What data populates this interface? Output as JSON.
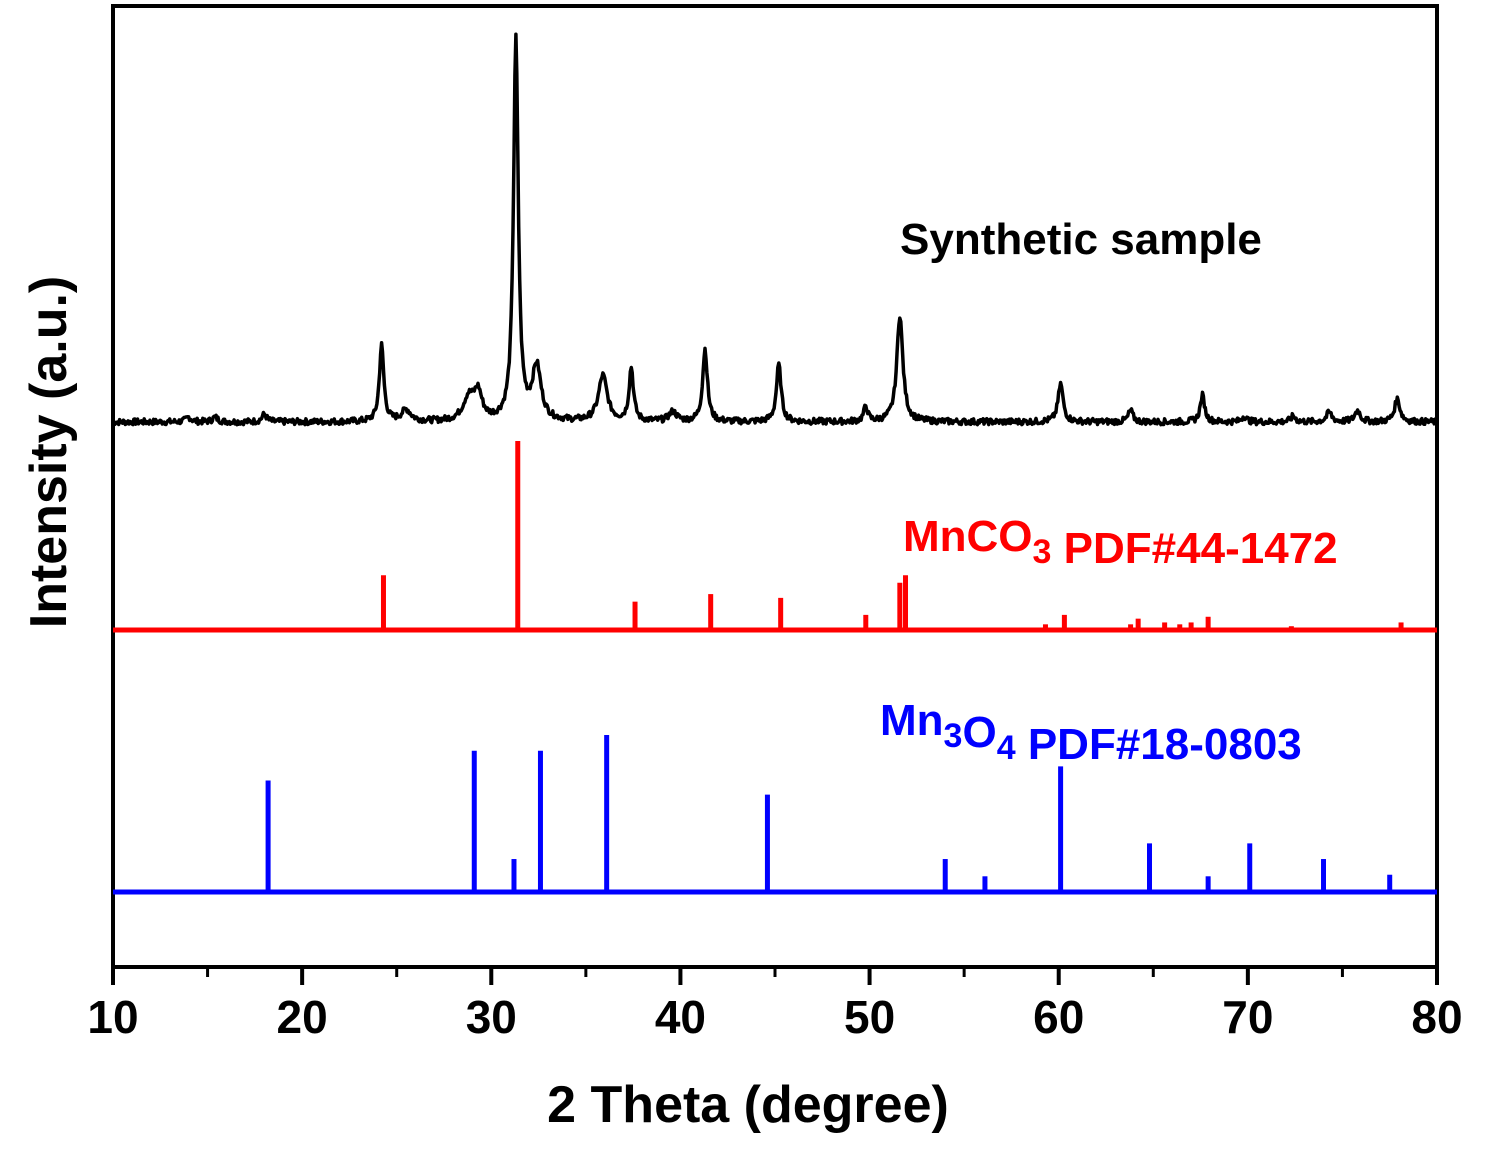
{
  "chart_data": {
    "type": "line",
    "title": "",
    "xlabel": "2 Theta (degree)",
    "ylabel": "Intensity (a.u.)",
    "xlim": [
      10,
      80
    ],
    "xticks": [
      10,
      20,
      30,
      40,
      50,
      60,
      70,
      80
    ],
    "xtick_labels": [
      "10",
      "20",
      "30",
      "40",
      "50",
      "60",
      "70",
      "80"
    ],
    "yticks_shown": false,
    "grid": false,
    "series": [
      {
        "name": "Synthetic sample",
        "label_parts": [
          "Synthetic sample"
        ],
        "kind": "pattern",
        "color": "#000000",
        "baseline": 0.0,
        "noise": 0.008,
        "peaks": [
          {
            "x": 14.0,
            "h": 0.012,
            "w": 0.35
          },
          {
            "x": 15.4,
            "h": 0.012,
            "w": 0.35
          },
          {
            "x": 18.0,
            "h": 0.02,
            "w": 0.3
          },
          {
            "x": 24.2,
            "h": 0.2,
            "w": 0.28
          },
          {
            "x": 25.5,
            "h": 0.03,
            "w": 0.6
          },
          {
            "x": 28.8,
            "h": 0.06,
            "w": 0.7
          },
          {
            "x": 29.3,
            "h": 0.07,
            "w": 0.5
          },
          {
            "x": 31.3,
            "h": 1.0,
            "w": 0.3
          },
          {
            "x": 32.4,
            "h": 0.14,
            "w": 0.55
          },
          {
            "x": 35.9,
            "h": 0.12,
            "w": 0.55
          },
          {
            "x": 37.4,
            "h": 0.14,
            "w": 0.28
          },
          {
            "x": 39.6,
            "h": 0.025,
            "w": 0.5
          },
          {
            "x": 41.3,
            "h": 0.19,
            "w": 0.3
          },
          {
            "x": 45.2,
            "h": 0.15,
            "w": 0.3
          },
          {
            "x": 49.8,
            "h": 0.04,
            "w": 0.25
          },
          {
            "x": 51.6,
            "h": 0.28,
            "w": 0.38
          },
          {
            "x": 60.1,
            "h": 0.1,
            "w": 0.32
          },
          {
            "x": 63.8,
            "h": 0.03,
            "w": 0.3
          },
          {
            "x": 67.6,
            "h": 0.07,
            "w": 0.28
          },
          {
            "x": 69.8,
            "h": 0.015,
            "w": 0.3
          },
          {
            "x": 72.4,
            "h": 0.015,
            "w": 0.3
          },
          {
            "x": 74.3,
            "h": 0.025,
            "w": 0.35
          },
          {
            "x": 75.8,
            "h": 0.03,
            "w": 0.35
          },
          {
            "x": 77.9,
            "h": 0.06,
            "w": 0.35
          }
        ]
      },
      {
        "name": "MnCO3 PDF#44-1472",
        "label_parts": [
          "MnCO",
          "3",
          " PDF#44-1472"
        ],
        "kind": "sticks",
        "color": "#ff0000",
        "sticks": [
          {
            "x": 24.3,
            "h": 0.29
          },
          {
            "x": 31.4,
            "h": 1.0
          },
          {
            "x": 34.4,
            "h": 0.01
          },
          {
            "x": 37.6,
            "h": 0.15
          },
          {
            "x": 41.6,
            "h": 0.19
          },
          {
            "x": 45.3,
            "h": 0.17
          },
          {
            "x": 49.8,
            "h": 0.08
          },
          {
            "x": 51.6,
            "h": 0.25
          },
          {
            "x": 51.9,
            "h": 0.29
          },
          {
            "x": 59.3,
            "h": 0.03
          },
          {
            "x": 60.3,
            "h": 0.08
          },
          {
            "x": 63.8,
            "h": 0.03
          },
          {
            "x": 64.2,
            "h": 0.06
          },
          {
            "x": 65.6,
            "h": 0.04
          },
          {
            "x": 66.4,
            "h": 0.03
          },
          {
            "x": 67.0,
            "h": 0.04
          },
          {
            "x": 67.9,
            "h": 0.07
          },
          {
            "x": 72.3,
            "h": 0.02
          },
          {
            "x": 78.1,
            "h": 0.04
          }
        ]
      },
      {
        "name": "Mn3O4 PDF#18-0803",
        "label_parts": [
          "Mn",
          "3",
          "O",
          "4",
          "  PDF#18-0803"
        ],
        "kind": "sticks",
        "color": "#0000ff",
        "sticks": [
          {
            "x": 18.2,
            "h": 0.71
          },
          {
            "x": 29.1,
            "h": 0.9
          },
          {
            "x": 31.2,
            "h": 0.21
          },
          {
            "x": 32.6,
            "h": 0.9
          },
          {
            "x": 36.1,
            "h": 1.0
          },
          {
            "x": 44.6,
            "h": 0.62
          },
          {
            "x": 54.0,
            "h": 0.21
          },
          {
            "x": 56.1,
            "h": 0.1
          },
          {
            "x": 60.1,
            "h": 0.8
          },
          {
            "x": 64.8,
            "h": 0.31
          },
          {
            "x": 67.9,
            "h": 0.1
          },
          {
            "x": 70.1,
            "h": 0.31
          },
          {
            "x": 74.0,
            "h": 0.21
          },
          {
            "x": 77.5,
            "h": 0.11
          }
        ]
      }
    ]
  }
}
